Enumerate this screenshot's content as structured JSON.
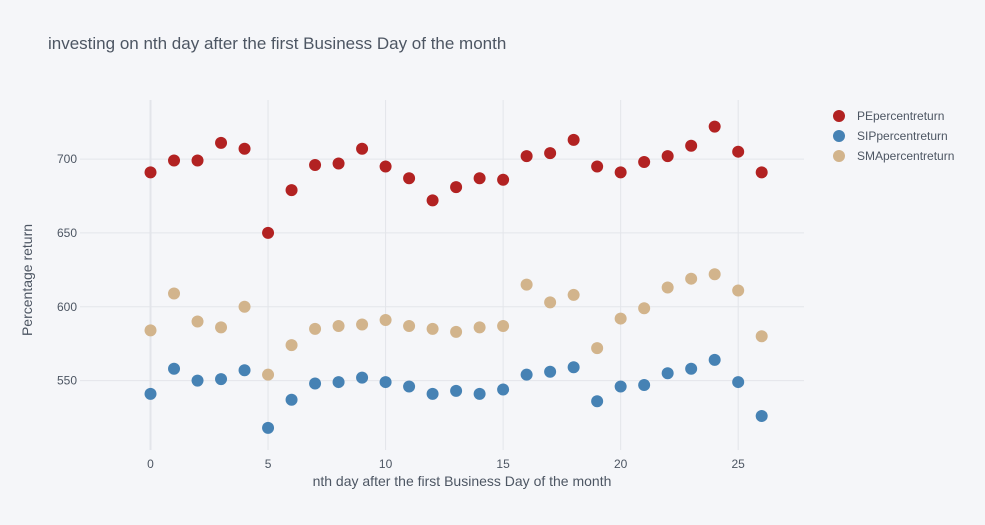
{
  "chart_data": {
    "type": "scatter",
    "title": "investing on nth day after the first Business Day of the month",
    "xlabel": "nth day after the first Business Day of the month",
    "ylabel": "Percentage return",
    "xlim": [
      -3,
      27.8
    ],
    "ylim": [
      503,
      740
    ],
    "xticks": [
      0,
      5,
      10,
      15,
      20,
      25
    ],
    "yticks": [
      550,
      600,
      650,
      700
    ],
    "grid": true,
    "legend_position": "top-right",
    "x": [
      0,
      1,
      2,
      3,
      4,
      5,
      6,
      7,
      8,
      9,
      10,
      11,
      12,
      13,
      14,
      15,
      16,
      17,
      18,
      19,
      20,
      21,
      22,
      23,
      24,
      25,
      26
    ],
    "series": [
      {
        "name": "PEpercentreturn",
        "color": "#b22222",
        "values": [
          691,
          699,
          699,
          711,
          707,
          650,
          679,
          696,
          697,
          707,
          695,
          687,
          672,
          681,
          687,
          686,
          702,
          704,
          713,
          695,
          691,
          698,
          702,
          709,
          722,
          705,
          691
        ]
      },
      {
        "name": "SIPpercentreturn",
        "color": "#4682b4",
        "values": [
          541,
          558,
          550,
          551,
          557,
          518,
          537,
          548,
          549,
          552,
          549,
          546,
          541,
          543,
          541,
          544,
          554,
          556,
          559,
          536,
          546,
          547,
          555,
          558,
          564,
          549,
          526
        ]
      },
      {
        "name": "SMApercentreturn",
        "color": "#d2b48c",
        "values": [
          584,
          609,
          590,
          586,
          600,
          554,
          574,
          585,
          587,
          588,
          591,
          587,
          585,
          583,
          586,
          587,
          615,
          603,
          608,
          572,
          592,
          599,
          613,
          619,
          622,
          611,
          580
        ]
      }
    ]
  }
}
